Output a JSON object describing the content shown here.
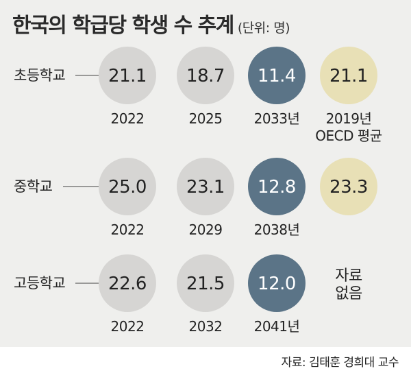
{
  "title": "한국의 학급당 학생 수 추계",
  "unit": "(단위: 명)",
  "source": "자료: 김태훈 경희대 교수",
  "colors": {
    "background": "#efefed",
    "historical": "#d6d5d3",
    "projection": "#5b7487",
    "oecd": "#e8e0b6",
    "text": "#222222",
    "text_on_dark": "#ffffff"
  },
  "chart_data": {
    "type": "bubble-table",
    "title": "한국의 학급당 학생 수 추계",
    "unit": "(단위: 명)",
    "rows": [
      {
        "label": "초등학교",
        "items": [
          {
            "value": "21.1",
            "year": "2022",
            "kind": "historical"
          },
          {
            "value": "18.7",
            "year": "2025",
            "kind": "historical"
          },
          {
            "value": "11.4",
            "year": "2033년",
            "kind": "projection"
          },
          {
            "value": "21.1",
            "year": "2019년\nOECD 평균",
            "kind": "oecd"
          }
        ]
      },
      {
        "label": "중학교",
        "items": [
          {
            "value": "25.0",
            "year": "2022",
            "kind": "historical"
          },
          {
            "value": "23.1",
            "year": "2029",
            "kind": "historical"
          },
          {
            "value": "12.8",
            "year": "2038년",
            "kind": "projection"
          },
          {
            "value": "23.3",
            "year": "",
            "kind": "oecd"
          }
        ]
      },
      {
        "label": "고등학교",
        "items": [
          {
            "value": "22.6",
            "year": "2022",
            "kind": "historical"
          },
          {
            "value": "21.5",
            "year": "2032",
            "kind": "historical"
          },
          {
            "value": "12.0",
            "year": "2041년",
            "kind": "projection"
          },
          {
            "value": "",
            "year": "",
            "kind": "none",
            "note": "자료\n없음"
          }
        ]
      }
    ]
  }
}
